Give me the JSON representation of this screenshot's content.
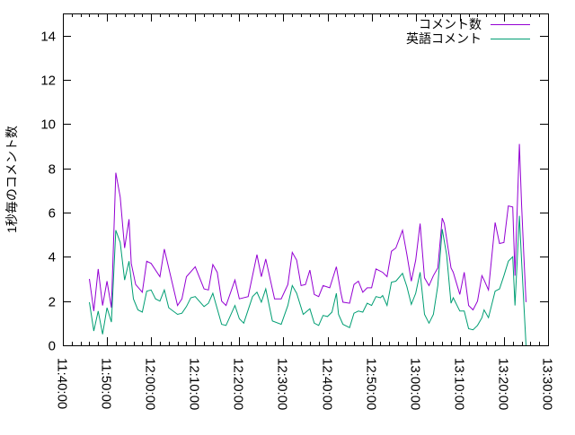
{
  "chart_data": {
    "type": "line",
    "title": "",
    "xlabel": "",
    "ylabel": "1秒毎のコメント数",
    "xlim": [
      "11:40:00",
      "13:30:00"
    ],
    "ylim": [
      0,
      15
    ],
    "xticks": [
      "11:40:00",
      "11:50:00",
      "12:00:00",
      "12:10:00",
      "12:20:00",
      "12:30:00",
      "12:40:00",
      "12:50:00",
      "13:00:00",
      "13:10:00",
      "13:20:00",
      "13:30:00"
    ],
    "yticks": [
      0,
      2,
      4,
      6,
      8,
      10,
      12,
      14
    ],
    "grid": false,
    "legend_position": "top-right",
    "series": [
      {
        "name": "コメント数",
        "color": "#9400d3",
        "x": [
          "11:46:00",
          "11:47:00",
          "11:48:00",
          "11:49:00",
          "11:50:00",
          "11:51:00",
          "11:52:00",
          "11:53:00",
          "11:54:00",
          "11:55:00",
          "11:55:30",
          "11:56:30",
          "11:58:00",
          "11:59:00",
          "12:00:00",
          "12:02:00",
          "12:03:00",
          "12:06:00",
          "12:07:00",
          "12:08:00",
          "12:10:00",
          "12:12:00",
          "12:13:00",
          "12:14:00",
          "12:15:00",
          "12:16:00",
          "12:17:00",
          "12:19:00",
          "12:20:00",
          "12:22:00",
          "12:24:00",
          "12:25:00",
          "12:26:00",
          "12:28:00",
          "12:29:30",
          "12:31:00",
          "12:32:00",
          "12:33:00",
          "12:34:00",
          "12:35:00",
          "12:36:00",
          "12:37:00",
          "12:38:00",
          "12:39:00",
          "12:40:30",
          "12:42:00",
          "12:43:00",
          "12:43:30",
          "12:45:00",
          "12:46:00",
          "12:47:00",
          "12:48:00",
          "12:49:00",
          "12:50:00",
          "12:51:00",
          "12:52:30",
          "12:53:30",
          "12:54:30",
          "12:55:30",
          "12:57:00",
          "12:58:00",
          "12:59:00",
          "13:00:00",
          "13:01:00",
          "13:02:00",
          "13:03:00",
          "13:04:00",
          "13:05:00",
          "13:06:00",
          "13:06:30",
          "13:08:00",
          "13:08:30",
          "13:10:00",
          "13:11:00",
          "13:12:00",
          "13:13:00",
          "13:14:00",
          "13:15:00",
          "13:15:30",
          "13:16:30",
          "13:18:00",
          "13:19:00",
          "13:20:00",
          "13:21:00",
          "13:22:00",
          "13:22:30",
          "13:23:30",
          "13:24:00",
          "13:24:30",
          "13:25:00"
        ],
        "values": [
          3.0,
          1.55,
          3.45,
          1.8,
          2.9,
          1.7,
          7.8,
          6.7,
          4.4,
          5.7,
          3.7,
          2.75,
          2.4,
          3.8,
          3.7,
          3.1,
          4.35,
          1.8,
          2.1,
          3.1,
          3.55,
          2.55,
          2.5,
          3.65,
          3.3,
          2.0,
          1.8,
          2.95,
          2.1,
          2.2,
          4.1,
          3.1,
          3.9,
          2.1,
          2.1,
          2.75,
          4.2,
          3.85,
          2.7,
          2.75,
          3.4,
          2.3,
          2.2,
          2.7,
          2.6,
          3.55,
          2.4,
          1.95,
          1.9,
          2.75,
          2.9,
          2.4,
          2.6,
          2.6,
          3.45,
          3.3,
          3.1,
          4.25,
          4.4,
          5.2,
          4.1,
          2.9,
          3.85,
          5.5,
          3.05,
          2.7,
          3.15,
          3.5,
          5.75,
          5.5,
          3.5,
          3.3,
          2.3,
          3.3,
          1.8,
          1.6,
          2.0,
          3.15,
          2.95,
          2.5,
          5.55,
          4.6,
          4.65,
          6.3,
          6.25,
          3.15,
          9.1,
          6.4,
          4.1,
          1.95
        ]
      },
      {
        "name": "英語コメント",
        "color": "#009e73",
        "x": [
          "11:46:00",
          "11:47:00",
          "11:48:00",
          "11:49:00",
          "11:50:00",
          "11:51:00",
          "11:52:00",
          "11:53:00",
          "11:54:00",
          "11:55:00",
          "11:56:00",
          "11:57:00",
          "11:58:00",
          "11:59:00",
          "12:00:00",
          "12:01:00",
          "12:02:00",
          "12:03:00",
          "12:04:00",
          "12:06:00",
          "12:07:00",
          "12:08:00",
          "12:09:00",
          "12:10:00",
          "12:12:00",
          "12:13:00",
          "12:14:00",
          "12:16:00",
          "12:17:00",
          "12:19:00",
          "12:20:00",
          "12:21:00",
          "12:23:00",
          "12:24:00",
          "12:25:00",
          "12:26:00",
          "12:27:30",
          "12:29:30",
          "12:31:00",
          "12:32:00",
          "12:33:00",
          "12:34:30",
          "12:36:00",
          "12:37:00",
          "12:38:00",
          "12:39:00",
          "12:40:00",
          "12:41:00",
          "12:42:00",
          "12:42:30",
          "12:43:30",
          "12:45:00",
          "12:46:00",
          "12:47:00",
          "12:48:00",
          "12:49:00",
          "12:50:00",
          "12:51:00",
          "12:52:00",
          "12:52:30",
          "12:53:30",
          "12:54:30",
          "12:55:30",
          "12:57:00",
          "12:58:00",
          "12:59:00",
          "13:00:00",
          "13:01:00",
          "13:02:00",
          "13:03:00",
          "13:04:00",
          "13:05:00",
          "13:06:00",
          "13:07:00",
          "13:08:00",
          "13:08:30",
          "13:10:00",
          "13:11:00",
          "13:12:00",
          "13:13:00",
          "13:14:00",
          "13:15:00",
          "13:15:30",
          "13:16:30",
          "13:18:00",
          "13:19:00",
          "13:20:00",
          "13:21:00",
          "13:22:00",
          "13:22:30",
          "13:23:30",
          "13:24:00",
          "13:25:00"
        ],
        "values": [
          1.95,
          0.65,
          1.55,
          0.5,
          1.7,
          1.05,
          5.2,
          4.65,
          2.95,
          3.8,
          2.1,
          1.6,
          1.5,
          2.45,
          2.5,
          2.1,
          2.0,
          2.5,
          1.7,
          1.4,
          1.45,
          1.75,
          2.15,
          2.2,
          1.75,
          1.9,
          2.35,
          0.95,
          0.9,
          1.8,
          1.2,
          1.0,
          2.2,
          2.4,
          1.95,
          2.55,
          1.1,
          0.95,
          1.8,
          2.7,
          2.35,
          1.4,
          1.65,
          1.0,
          0.9,
          1.35,
          1.3,
          1.5,
          2.35,
          1.4,
          0.95,
          0.8,
          1.45,
          1.55,
          1.5,
          1.9,
          1.8,
          2.2,
          2.15,
          2.25,
          1.8,
          2.85,
          2.9,
          3.25,
          2.65,
          1.85,
          2.35,
          3.3,
          1.4,
          1.0,
          1.4,
          2.7,
          5.25,
          4.1,
          1.9,
          2.15,
          1.55,
          1.55,
          0.75,
          0.7,
          0.9,
          1.25,
          1.6,
          1.25,
          2.45,
          2.55,
          3.15,
          3.8,
          4.0,
          1.8,
          5.85,
          3.85,
          0
        ]
      }
    ]
  }
}
